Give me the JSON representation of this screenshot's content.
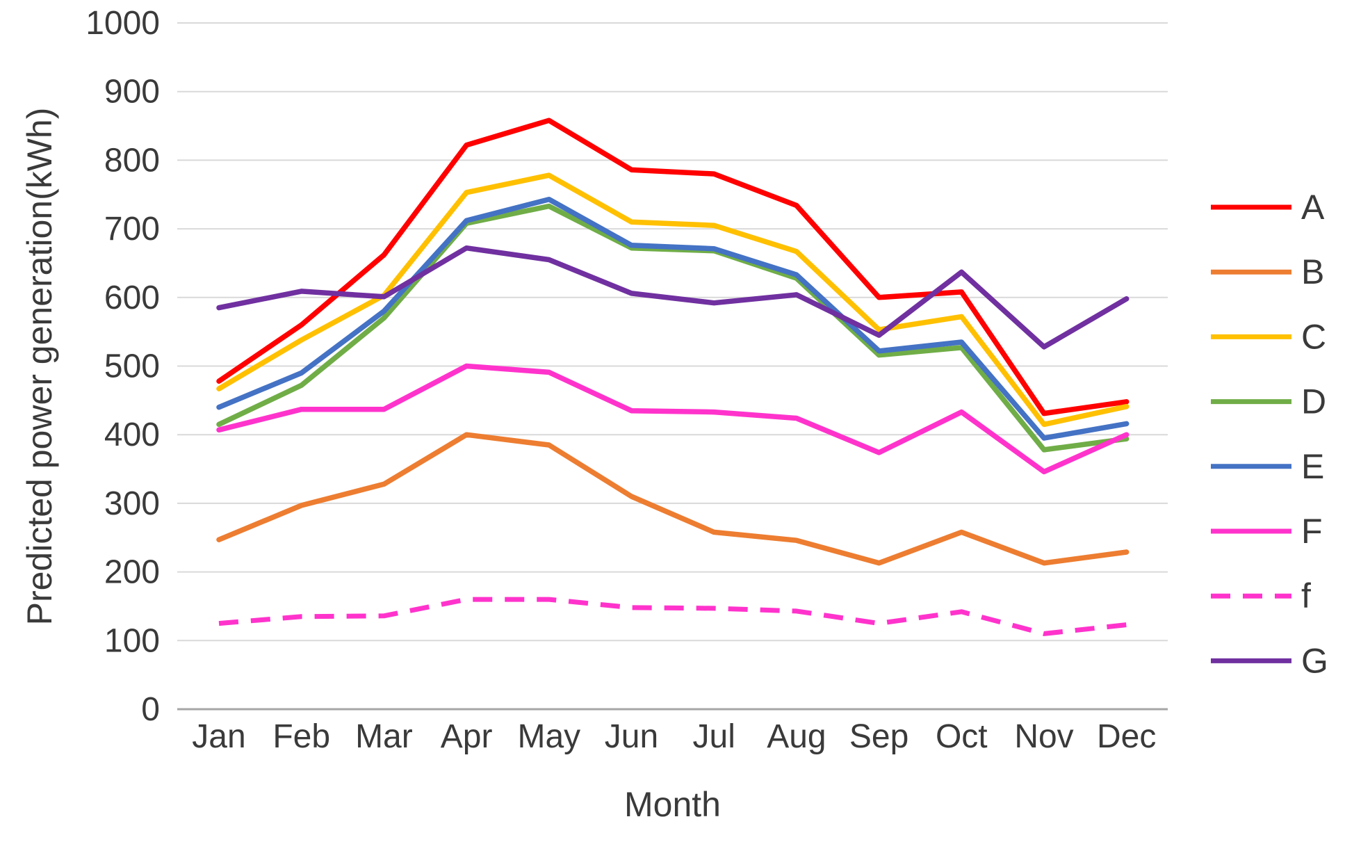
{
  "chart_data": {
    "type": "line",
    "title": "",
    "ylabel": "Predicted power generation(kWh)",
    "xlabel": "Month",
    "ylim": [
      0,
      1000
    ],
    "y_ticks": [
      0,
      100,
      200,
      300,
      400,
      500,
      600,
      700,
      800,
      900,
      1000
    ],
    "grid": true,
    "legend_position": "right",
    "categories": [
      "Jan",
      "Feb",
      "Mar",
      "Apr",
      "May",
      "Jun",
      "Jul",
      "Aug",
      "Sep",
      "Oct",
      "Nov",
      "Dec"
    ],
    "series": [
      {
        "name": "A",
        "color": "#ff0000",
        "dashed": false,
        "values": [
          478,
          560,
          662,
          822,
          858,
          786,
          780,
          734,
          600,
          608,
          431,
          448
        ]
      },
      {
        "name": "B",
        "color": "#ed7d31",
        "dashed": false,
        "values": [
          247,
          297,
          328,
          400,
          385,
          310,
          258,
          246,
          213,
          258,
          213,
          229
        ]
      },
      {
        "name": "C",
        "color": "#ffc000",
        "dashed": false,
        "values": [
          467,
          538,
          603,
          753,
          778,
          710,
          705,
          667,
          553,
          572,
          415,
          441
        ]
      },
      {
        "name": "D",
        "color": "#70ad47",
        "dashed": false,
        "values": [
          415,
          472,
          570,
          708,
          733,
          672,
          668,
          628,
          516,
          527,
          378,
          394
        ]
      },
      {
        "name": "E",
        "color": "#4472c4",
        "dashed": false,
        "values": [
          440,
          490,
          580,
          712,
          743,
          676,
          671,
          633,
          522,
          535,
          395,
          416
        ]
      },
      {
        "name": "F",
        "color": "#ff33cc",
        "dashed": false,
        "values": [
          407,
          437,
          437,
          500,
          491,
          435,
          433,
          424,
          374,
          433,
          346,
          400
        ]
      },
      {
        "name": "f",
        "color": "#ff33cc",
        "dashed": true,
        "values": [
          125,
          135,
          136,
          160,
          160,
          148,
          147,
          143,
          125,
          142,
          110,
          123
        ]
      },
      {
        "name": "G",
        "color": "#7030a0",
        "dashed": false,
        "values": [
          585,
          609,
          601,
          672,
          655,
          606,
          592,
          604,
          545,
          637,
          528,
          598
        ]
      }
    ],
    "colors": {
      "gridline": "#d9d9d9",
      "axis_line": "#a6a6a6",
      "text": "#3a3a3a"
    }
  }
}
